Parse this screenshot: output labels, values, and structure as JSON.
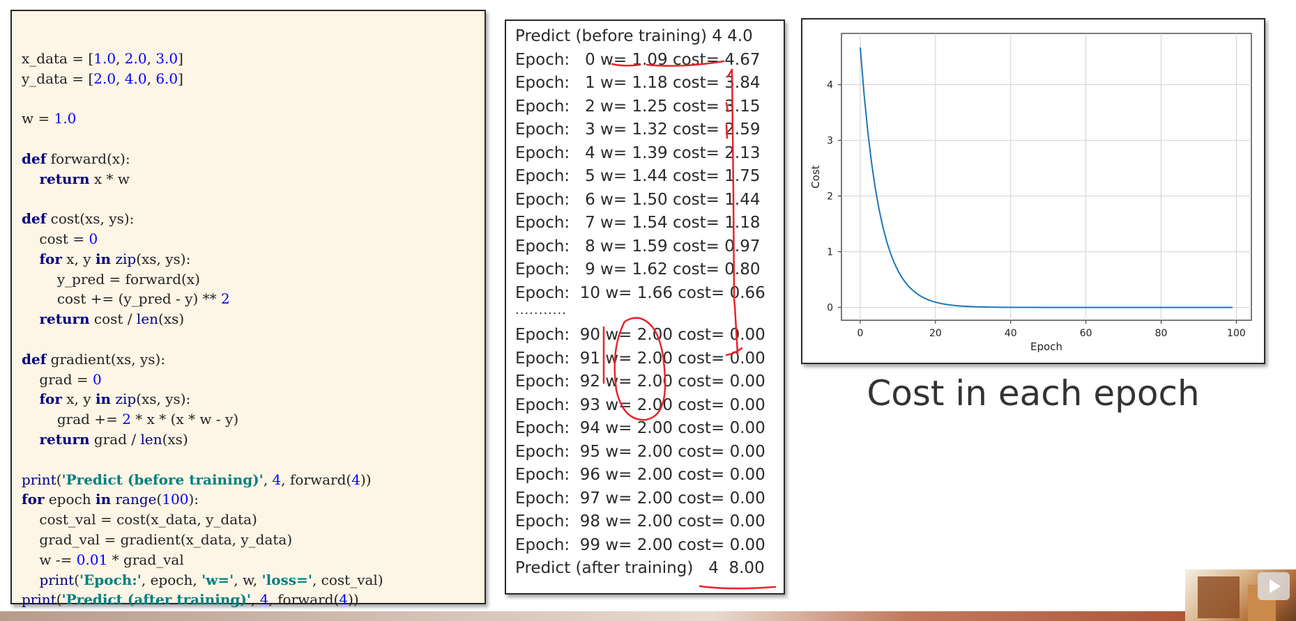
{
  "code_lines": [
    [],
    [
      {
        "t": "x_data = ["
      },
      {
        "t": "1.0",
        "c": "num"
      },
      {
        "t": ", "
      },
      {
        "t": "2.0",
        "c": "num"
      },
      {
        "t": ", "
      },
      {
        "t": "3.0",
        "c": "num"
      },
      {
        "t": "]"
      }
    ],
    [
      {
        "t": "y_data = ["
      },
      {
        "t": "2.0",
        "c": "num"
      },
      {
        "t": ", "
      },
      {
        "t": "4.0",
        "c": "num"
      },
      {
        "t": ", "
      },
      {
        "t": "6.0",
        "c": "num"
      },
      {
        "t": "]"
      }
    ],
    [],
    [
      {
        "t": "w = "
      },
      {
        "t": "1.0",
        "c": "num"
      }
    ],
    [],
    [
      {
        "t": "def",
        "c": "kw"
      },
      {
        "t": " forward(x):"
      }
    ],
    [
      {
        "t": "    "
      },
      {
        "t": "return",
        "c": "kw"
      },
      {
        "t": " x * w"
      }
    ],
    [],
    [
      {
        "t": "def",
        "c": "kw"
      },
      {
        "t": " cost(xs, ys):"
      }
    ],
    [
      {
        "t": "    cost = "
      },
      {
        "t": "0",
        "c": "num"
      }
    ],
    [
      {
        "t": "    "
      },
      {
        "t": "for",
        "c": "kw"
      },
      {
        "t": " x, y "
      },
      {
        "t": "in",
        "c": "kw"
      },
      {
        "t": " "
      },
      {
        "t": "zip",
        "c": "bi"
      },
      {
        "t": "(xs, ys):"
      }
    ],
    [
      {
        "t": "        y_pred = forward(x)"
      }
    ],
    [
      {
        "t": "        cost += (y_pred - y) ** "
      },
      {
        "t": "2",
        "c": "num"
      }
    ],
    [
      {
        "t": "    "
      },
      {
        "t": "return",
        "c": "kw"
      },
      {
        "t": " cost / "
      },
      {
        "t": "len",
        "c": "bi"
      },
      {
        "t": "(xs)"
      }
    ],
    [],
    [
      {
        "t": "def",
        "c": "kw"
      },
      {
        "t": " gradient(xs, ys):"
      }
    ],
    [
      {
        "t": "    grad = "
      },
      {
        "t": "0",
        "c": "num"
      }
    ],
    [
      {
        "t": "    "
      },
      {
        "t": "for",
        "c": "kw"
      },
      {
        "t": " x, y "
      },
      {
        "t": "in",
        "c": "kw"
      },
      {
        "t": " "
      },
      {
        "t": "zip",
        "c": "bi"
      },
      {
        "t": "(xs, ys):"
      }
    ],
    [
      {
        "t": "        grad += "
      },
      {
        "t": "2",
        "c": "num"
      },
      {
        "t": " * x * (x * w - y)"
      }
    ],
    [
      {
        "t": "    "
      },
      {
        "t": "return",
        "c": "kw"
      },
      {
        "t": " grad / "
      },
      {
        "t": "len",
        "c": "bi"
      },
      {
        "t": "(xs)"
      }
    ],
    [],
    [
      {
        "t": "print",
        "c": "bi"
      },
      {
        "t": "("
      },
      {
        "t": "'Predict (before training)'",
        "c": "str"
      },
      {
        "t": ", "
      },
      {
        "t": "4",
        "c": "num"
      },
      {
        "t": ", forward("
      },
      {
        "t": "4",
        "c": "num"
      },
      {
        "t": "))"
      }
    ],
    [
      {
        "t": "for",
        "c": "kw"
      },
      {
        "t": " epoch "
      },
      {
        "t": "in",
        "c": "kw"
      },
      {
        "t": " "
      },
      {
        "t": "range",
        "c": "bi"
      },
      {
        "t": "("
      },
      {
        "t": "100",
        "c": "num"
      },
      {
        "t": "):"
      }
    ],
    [
      {
        "t": "    cost_val = cost(x_data, y_data)"
      }
    ],
    [
      {
        "t": "    grad_val = gradient(x_data, y_data)"
      }
    ],
    [
      {
        "t": "    w -= "
      },
      {
        "t": "0.01",
        "c": "num"
      },
      {
        "t": " * grad_val"
      }
    ],
    [
      {
        "t": "    "
      },
      {
        "t": "print",
        "c": "bi"
      },
      {
        "t": "("
      },
      {
        "t": "'Epoch:'",
        "c": "str"
      },
      {
        "t": ", epoch, "
      },
      {
        "t": "'w='",
        "c": "str"
      },
      {
        "t": ", w, "
      },
      {
        "t": "'loss='",
        "c": "str"
      },
      {
        "t": ", cost_val)"
      }
    ],
    [
      {
        "t": "print",
        "c": "bi"
      },
      {
        "t": "("
      },
      {
        "t": "'Predict (after training)'",
        "c": "str"
      },
      {
        "t": ", "
      },
      {
        "t": "4",
        "c": "num"
      },
      {
        "t": ", forward("
      },
      {
        "t": "4",
        "c": "num"
      },
      {
        "t": "))"
      }
    ]
  ],
  "output_lines": [
    "Predict (before training) 4 4.0",
    "Epoch:   0 w= 1.09 cost= 4.67",
    "Epoch:   1 w= 1.18 cost= 3.84",
    "Epoch:   2 w= 1.25 cost= 3.15",
    "Epoch:   3 w= 1.32 cost= 2.59",
    "Epoch:   4 w= 1.39 cost= 2.13",
    "Epoch:   5 w= 1.44 cost= 1.75",
    "Epoch:   6 w= 1.50 cost= 1.44",
    "Epoch:   7 w= 1.54 cost= 1.18",
    "Epoch:   8 w= 1.59 cost= 0.97",
    "Epoch:   9 w= 1.62 cost= 0.80",
    "Epoch:  10 w= 1.66 cost= 0.66",
    "...........",
    "Epoch:  90 w= 2.00 cost= 0.00",
    "Epoch:  91 w= 2.00 cost= 0.00",
    "Epoch:  92 w= 2.00 cost= 0.00",
    "Epoch:  93 w= 2.00 cost= 0.00",
    "Epoch:  94 w= 2.00 cost= 0.00",
    "Epoch:  95 w= 2.00 cost= 0.00",
    "Epoch:  96 w= 2.00 cost= 0.00",
    "Epoch:  97 w= 2.00 cost= 0.00",
    "Epoch:  98 w= 2.00 cost= 0.00",
    "Epoch:  99 w= 2.00 cost= 0.00",
    "Predict (after training)   4  8.00"
  ],
  "chart_data": {
    "type": "line",
    "title": "",
    "xlabel": "Epoch",
    "ylabel": "Cost",
    "xlim": [
      -5,
      104
    ],
    "ylim": [
      -0.23,
      4.92
    ],
    "xticks": [
      "0",
      "20",
      "40",
      "60",
      "80",
      "100"
    ],
    "yticks": [
      "0",
      "1",
      "2",
      "3",
      "4"
    ],
    "grid": true,
    "series": [
      {
        "color": "#1f77b4",
        "x0": 0,
        "decay": 0.8228,
        "y0": 4.6667,
        "points": 100
      }
    ]
  },
  "caption": "Cost in each epoch",
  "colors": {
    "annotation": "#e8242a",
    "line": "#1f77b4"
  }
}
